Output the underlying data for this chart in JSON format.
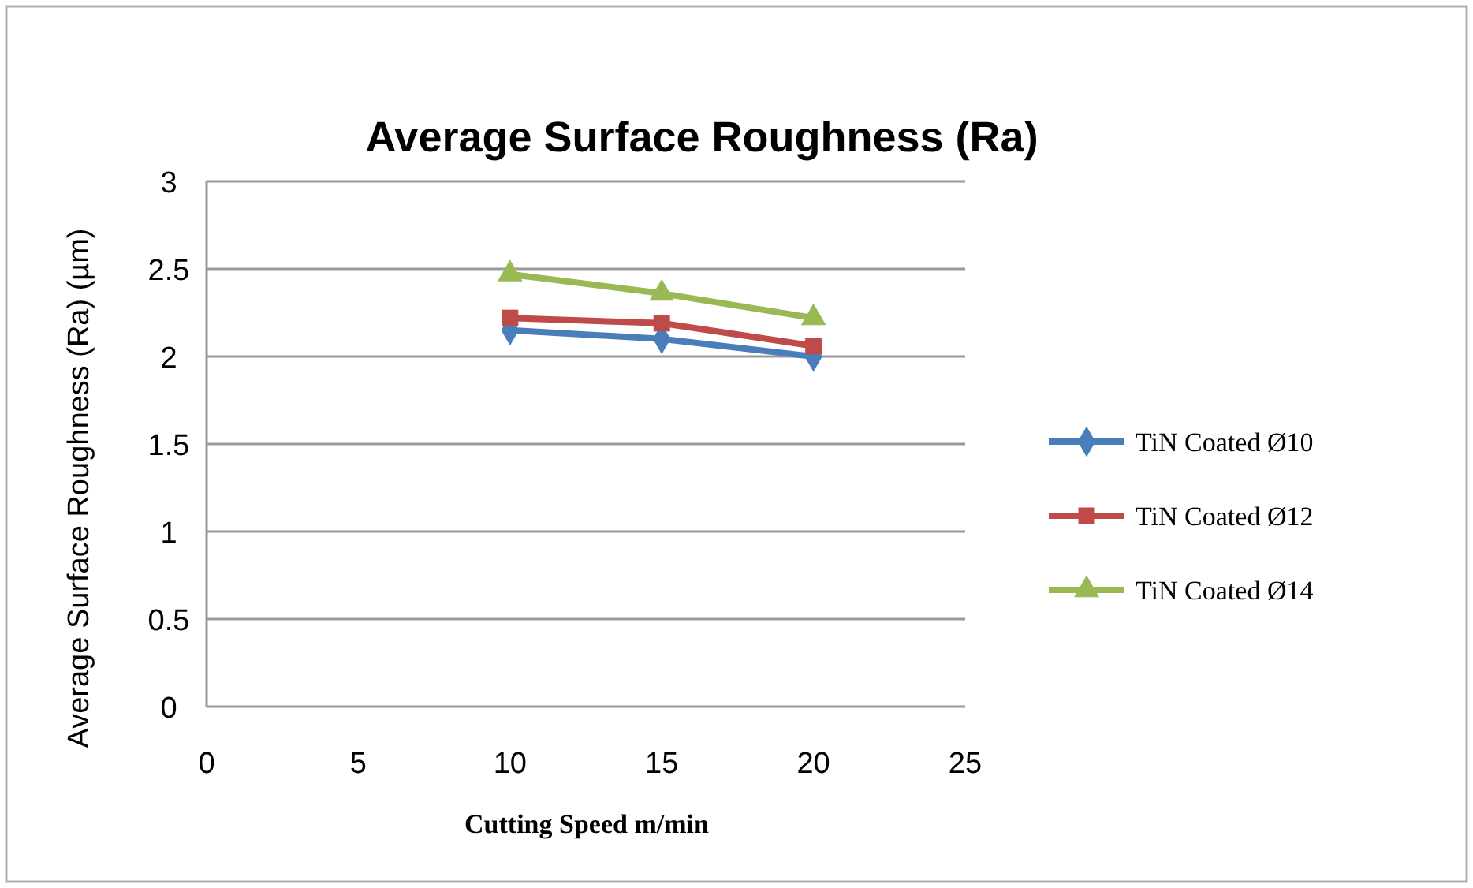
{
  "chart_data": {
    "type": "line",
    "title": "Average Surface Roughness (Ra)",
    "xlabel": "Cutting Speed m/min",
    "ylabel": "Average Surface Roughness (Ra) (µm)",
    "x": [
      10,
      15,
      20
    ],
    "series": [
      {
        "name": "TiN Coated Ø10",
        "color": "#4a7ebb",
        "values": [
          2.15,
          2.1,
          2.0
        ],
        "marker": "diamond"
      },
      {
        "name": "TiN Coated Ø12",
        "color": "#be4b48",
        "values": [
          2.22,
          2.19,
          2.06
        ],
        "marker": "square"
      },
      {
        "name": "TiN Coated Ø14",
        "color": "#98b954",
        "values": [
          2.47,
          2.36,
          2.22
        ],
        "marker": "triangle"
      }
    ],
    "xlim": [
      0,
      25
    ],
    "xticks": [
      0,
      5,
      10,
      15,
      20,
      25
    ],
    "ylim": [
      0,
      3
    ],
    "yticks": [
      0,
      0.5,
      1,
      1.5,
      2,
      2.5,
      3
    ],
    "grid": "y",
    "legend": "right",
    "line_style": "solid"
  }
}
